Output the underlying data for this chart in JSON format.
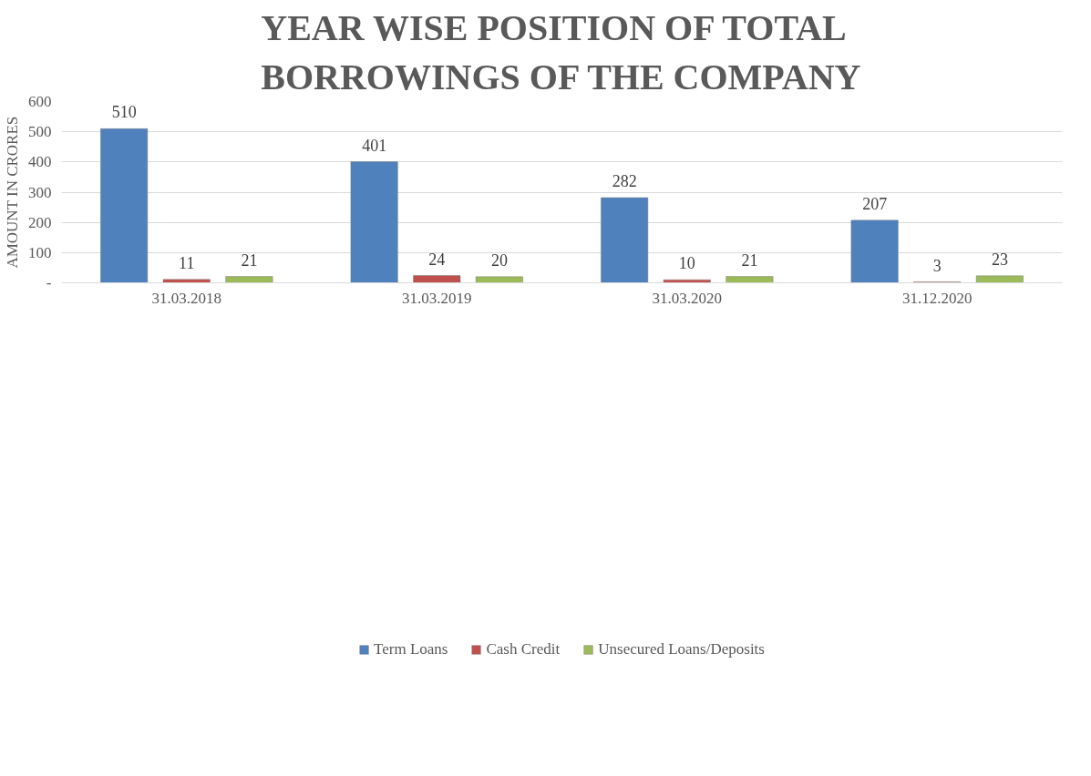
{
  "chart_data": {
    "type": "bar",
    "title": "YEAR WISE POSITION OF TOTAL BORROWINGS OF THE COMPANY",
    "ylabel": "AMOUNT IN CRORES",
    "categories": [
      "31.03.2018",
      "31.03.2019",
      "31.03.2020",
      "31.12.2020"
    ],
    "series": [
      {
        "name": "Term Loans",
        "color": "#4f81bd",
        "values": [
          510,
          401,
          282,
          207
        ]
      },
      {
        "name": "Cash Credit",
        "color": "#c0504d",
        "values": [
          11,
          24,
          10,
          3
        ]
      },
      {
        "name": "Unsecured Loans/Deposits",
        "color": "#9bbb59",
        "values": [
          21,
          20,
          21,
          23
        ]
      }
    ],
    "ylim": [
      0,
      600
    ],
    "yticks": [
      {
        "value": 0,
        "label": "-"
      },
      100,
      200,
      300,
      400,
      500,
      600
    ],
    "grid": "y",
    "legend": "bottom",
    "data_labels": true
  }
}
